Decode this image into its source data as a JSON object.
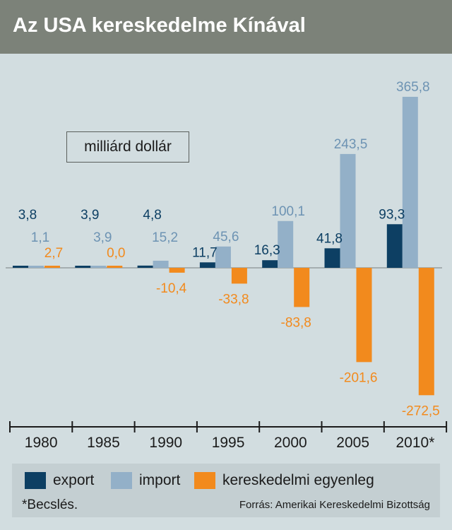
{
  "title": "Az USA kereskedelme Kínával",
  "unit_label": "milliárd dollár",
  "colors": {
    "export": "#0d3f63",
    "import": "#93b0c8",
    "balance": "#f28a1d",
    "import_label": "#6d93b3"
  },
  "chart_data": {
    "type": "bar",
    "title": "Az USA kereskedelme Kínával",
    "ylabel": "milliárd dollár",
    "categories": [
      "1980",
      "1985",
      "1990",
      "1995",
      "2000",
      "2005",
      "2010*"
    ],
    "series": [
      {
        "name": "export",
        "values": [
          3.8,
          3.9,
          4.8,
          11.7,
          16.3,
          41.8,
          93.3
        ],
        "labels": [
          "3,8",
          "3,9",
          "4,8",
          "11,7",
          "16,3",
          "41,8",
          "93,3"
        ]
      },
      {
        "name": "import",
        "values": [
          1.1,
          3.9,
          15.2,
          45.6,
          100.1,
          243.5,
          365.8
        ],
        "labels": [
          "1,1",
          "3,9",
          "15,2",
          "45,6",
          "100,1",
          "243,5",
          "365,8"
        ]
      },
      {
        "name": "kereskedelmi egyenleg",
        "values": [
          2.7,
          0.0,
          -10.4,
          -33.8,
          -83.8,
          -201.6,
          -272.5
        ],
        "labels": [
          "2,7",
          "0,0",
          "-10,4",
          "-33,8",
          "-83,8",
          "-201,6",
          "-272,5"
        ]
      }
    ],
    "ylim": [
      -272.5,
      365.8
    ],
    "grid": false,
    "legend": "bottom"
  },
  "legend": {
    "export": "export",
    "import": "import",
    "balance": "kereskedelmi egyenleg"
  },
  "note": "*Becslés.",
  "source": "Forrás: Amerikai Kereskedelmi Bizottság"
}
